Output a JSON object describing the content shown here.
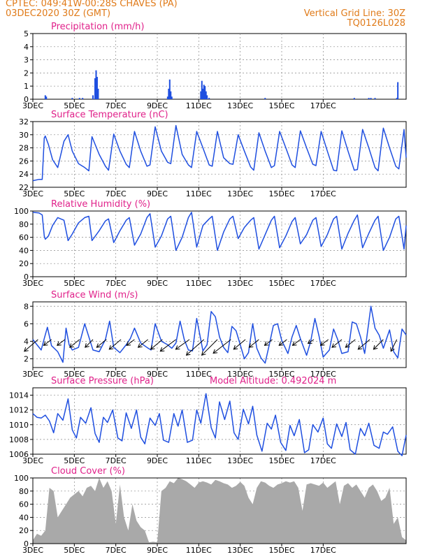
{
  "header": {
    "source_line": "CPTEC:   049:41W-00:28S   CHAVES (PA)",
    "date_line": "03DEC2020 30Z (GMT)",
    "grid_note": "Vertical Grid Line: 30Z",
    "run_code": "TQ0126L028"
  },
  "colors": {
    "header": "#e07b1a",
    "title": "#e0218a",
    "series": "#1f4fe0",
    "cloud": "#a9a9a9",
    "arrow": "#000000"
  },
  "x_tick_labels": [
    "3DEC",
    "5DEC",
    "7DEC",
    "9DEC",
    "11DEC",
    "13DEC",
    "15DEC",
    "17DEC"
  ],
  "chart_data": [
    {
      "type": "bar",
      "title": "Precipitation (mm/h)",
      "ylim": [
        0,
        5
      ],
      "yticks": [
        "0",
        "1",
        "2",
        "3",
        "4",
        "5"
      ],
      "x_unit": "days since 3DEC",
      "x": [
        0.6,
        0.65,
        1.9,
        2.25,
        2.4,
        2.9,
        3.0,
        3.05,
        3.1,
        3.15,
        6.5,
        6.55,
        6.6,
        6.65,
        6.7,
        8.1,
        8.15,
        8.2,
        8.25,
        8.3,
        8.35,
        8.4,
        8.5,
        11.2,
        15.5,
        16.2,
        16.3,
        16.5,
        17.55,
        17.6
      ],
      "values": [
        0.3,
        0.2,
        0.1,
        0.1,
        0.1,
        0.3,
        1.6,
        2.2,
        1.7,
        0.8,
        0.2,
        0.8,
        1.5,
        0.6,
        0.2,
        0.6,
        1.4,
        0.8,
        1.1,
        1.0,
        0.6,
        0.3,
        0.1,
        0.1,
        0.1,
        0.1,
        0.1,
        0.1,
        0.1,
        1.3
      ]
    },
    {
      "type": "line",
      "title": "Surface Temperature (nC)",
      "ylim": [
        22,
        32
      ],
      "yticks": [
        "22",
        "24",
        "26",
        "28",
        "30",
        "32"
      ],
      "x_unit": "days since 3DEC",
      "series": [
        {
          "x": [
            0,
            0.3,
            0.45,
            0.55,
            0.6,
            0.75,
            0.95,
            1.2,
            1.5,
            1.7,
            1.9,
            2.2,
            2.5,
            2.7,
            2.85,
            3.2,
            3.5,
            3.65,
            3.9,
            4.2,
            4.5,
            4.65,
            4.9,
            5.2,
            5.5,
            5.65,
            5.9,
            6.2,
            6.5,
            6.65,
            6.9,
            7.2,
            7.5,
            7.65,
            7.9,
            8.2,
            8.5,
            8.65,
            8.9,
            9.2,
            9.5,
            9.65,
            9.9,
            10.2,
            10.5,
            10.65,
            10.9,
            11.2,
            11.5,
            11.65,
            11.9,
            12.2,
            12.5,
            12.65,
            12.9,
            13.2,
            13.5,
            13.65,
            13.9,
            14.2,
            14.5,
            14.65,
            14.9,
            15.2,
            15.5,
            15.65,
            15.9,
            16.2,
            16.5,
            16.65,
            16.9,
            17.2,
            17.5,
            17.65,
            17.9,
            18.0
          ],
          "y": [
            23.0,
            23.2,
            23.2,
            29.5,
            29.8,
            28.5,
            26.2,
            25.0,
            29.0,
            30.0,
            27.5,
            25.6,
            25.0,
            24.5,
            29.7,
            27.0,
            25.2,
            24.6,
            30.1,
            27.5,
            25.5,
            25.0,
            30.5,
            27.5,
            25.2,
            25.4,
            31.2,
            27.5,
            25.8,
            25.6,
            31.4,
            27.0,
            25.4,
            25.0,
            30.5,
            28.0,
            25.4,
            25.2,
            30.5,
            26.5,
            25.6,
            25.5,
            30.0,
            27.5,
            25.1,
            24.6,
            30.3,
            27.5,
            25.0,
            25.3,
            30.5,
            28.0,
            25.4,
            25.0,
            30.6,
            28.0,
            25.5,
            25.3,
            30.5,
            27.5,
            24.6,
            24.5,
            30.6,
            27.5,
            24.6,
            24.7,
            30.8,
            28.0,
            25.0,
            24.5,
            31.0,
            28.0,
            25.2,
            24.8,
            30.8,
            26.5
          ]
        }
      ]
    },
    {
      "type": "line",
      "title": "Relative Humidity (%)",
      "ylim": [
        0,
        100
      ],
      "yticks": [
        "0",
        "20",
        "40",
        "60",
        "80",
        "100"
      ],
      "x_unit": "days since 3DEC",
      "series": [
        {
          "x": [
            0,
            0.3,
            0.45,
            0.55,
            0.6,
            0.75,
            0.95,
            1.2,
            1.5,
            1.7,
            1.9,
            2.2,
            2.5,
            2.7,
            2.85,
            3.2,
            3.5,
            3.65,
            3.9,
            4.2,
            4.5,
            4.65,
            4.9,
            5.2,
            5.5,
            5.65,
            5.9,
            6.2,
            6.5,
            6.65,
            6.9,
            7.2,
            7.5,
            7.65,
            7.9,
            8.2,
            8.5,
            8.65,
            8.9,
            9.2,
            9.5,
            9.65,
            9.9,
            10.2,
            10.5,
            10.65,
            10.9,
            11.2,
            11.5,
            11.65,
            11.9,
            12.2,
            12.5,
            12.65,
            12.9,
            13.2,
            13.5,
            13.65,
            13.9,
            14.2,
            14.5,
            14.65,
            14.9,
            15.2,
            15.5,
            15.65,
            15.9,
            16.2,
            16.5,
            16.65,
            16.9,
            17.2,
            17.5,
            17.65,
            17.9,
            18.0
          ],
          "y": [
            98,
            97,
            94,
            62,
            57,
            62,
            78,
            90,
            86,
            55,
            65,
            82,
            90,
            92,
            55,
            70,
            85,
            88,
            52,
            70,
            86,
            90,
            48,
            65,
            90,
            96,
            45,
            62,
            88,
            92,
            40,
            60,
            90,
            98,
            45,
            78,
            88,
            92,
            40,
            68,
            88,
            92,
            58,
            75,
            86,
            90,
            42,
            64,
            86,
            92,
            44,
            62,
            84,
            90,
            50,
            64,
            86,
            90,
            46,
            64,
            88,
            92,
            42,
            66,
            86,
            94,
            44,
            66,
            86,
            92,
            40,
            60,
            88,
            92,
            42,
            78
          ]
        }
      ]
    },
    {
      "type": "line",
      "title": "Surface Wind (m/s)",
      "ylim": [
        1,
        8.5
      ],
      "yticks": [
        "2",
        "4",
        "6",
        "8"
      ],
      "x_unit": "days since 3DEC",
      "series": [
        {
          "x": [
            0,
            0.2,
            0.4,
            0.55,
            0.7,
            0.9,
            1.2,
            1.45,
            1.6,
            1.75,
            1.9,
            2.2,
            2.5,
            2.7,
            2.9,
            3.2,
            3.5,
            3.7,
            3.9,
            4.2,
            4.5,
            4.7,
            4.9,
            5.2,
            5.5,
            5.7,
            5.9,
            6.2,
            6.5,
            6.7,
            6.9,
            7.1,
            7.3,
            7.5,
            7.7,
            7.9,
            8.2,
            8.4,
            8.6,
            8.8,
            9.0,
            9.2,
            9.4,
            9.6,
            9.8,
            10.0,
            10.2,
            10.4,
            10.6,
            10.8,
            11.0,
            11.2,
            11.4,
            11.6,
            11.8,
            12.0,
            12.3,
            12.5,
            12.7,
            12.9,
            13.2,
            13.4,
            13.6,
            13.8,
            14.0,
            14.3,
            14.5,
            14.7,
            14.9,
            15.2,
            15.4,
            15.6,
            15.8,
            16.0,
            16.3,
            16.5,
            16.7,
            16.9,
            17.2,
            17.4,
            17.6,
            17.8,
            18.0
          ],
          "y": [
            4.2,
            3.6,
            3.0,
            4.3,
            5.6,
            3.5,
            2.8,
            1.6,
            5.5,
            3.6,
            3.0,
            3.3,
            6.0,
            4.5,
            3.0,
            2.8,
            4.2,
            6.3,
            3.3,
            2.7,
            3.6,
            4.3,
            5.5,
            3.8,
            3.3,
            3.0,
            6.0,
            4.0,
            3.6,
            3.2,
            3.8,
            6.3,
            4.2,
            3.0,
            2.9,
            6.6,
            2.9,
            3.6,
            7.4,
            6.8,
            4.5,
            3.3,
            2.7,
            5.7,
            5.2,
            3.6,
            2.0,
            2.7,
            6.0,
            3.2,
            2.1,
            1.5,
            3.6,
            5.8,
            6.0,
            4.1,
            2.6,
            4.5,
            5.8,
            4.3,
            2.4,
            4.0,
            6.6,
            4.6,
            2.2,
            3.0,
            5.4,
            4.2,
            2.6,
            2.8,
            6.2,
            6.0,
            4.5,
            2.6,
            8.0,
            5.5,
            4.7,
            3.2,
            5.3,
            2.8,
            2.1,
            5.4,
            4.7
          ]
        }
      ],
      "vectors": {
        "x": [
          0.25,
          0.9,
          1.55,
          2.25,
          2.9,
          3.55,
          4.25,
          4.9,
          5.55,
          6.25,
          6.9,
          7.55,
          8.25,
          8.9,
          9.55,
          10.25,
          10.9,
          11.55,
          12.25,
          12.9,
          13.55,
          14.25,
          14.9,
          15.55,
          16.25,
          16.9,
          17.55
        ],
        "dx": [
          -0.7,
          -0.4,
          -0.4,
          -0.5,
          -0.4,
          -0.5,
          -0.6,
          -0.4,
          -0.5,
          -0.6,
          -0.8,
          -0.7,
          -0.9,
          -0.8,
          -0.9,
          -0.6,
          -0.5,
          -0.4,
          -0.4,
          -0.4,
          -0.3,
          -0.4,
          -0.5,
          -0.5,
          -0.6,
          -0.5,
          -0.3
        ],
        "dy": [
          -0.6,
          -0.3,
          -0.3,
          -0.4,
          -0.4,
          -0.4,
          -0.5,
          -0.3,
          -0.4,
          -0.5,
          -0.6,
          -0.5,
          -0.8,
          -0.8,
          -0.7,
          -0.5,
          -0.4,
          -0.3,
          -0.3,
          -0.3,
          -0.2,
          -0.3,
          -0.4,
          -0.4,
          -0.5,
          -0.5,
          -0.6
        ]
      }
    },
    {
      "type": "line",
      "title": "Surface Pressure (hPa)",
      "annotation": "Model Altitude: 0.492024 m",
      "ylim": [
        1006,
        1015
      ],
      "yticks": [
        "1006",
        "1008",
        "1010",
        "1012",
        "1014"
      ],
      "x_unit": "days since 3DEC",
      "series": [
        {
          "x": [
            0,
            0.2,
            0.4,
            0.6,
            0.8,
            1.0,
            1.2,
            1.45,
            1.7,
            1.9,
            2.1,
            2.3,
            2.55,
            2.8,
            3.0,
            3.2,
            3.4,
            3.6,
            3.85,
            4.1,
            4.3,
            4.5,
            4.75,
            5.0,
            5.2,
            5.4,
            5.65,
            5.9,
            6.1,
            6.3,
            6.55,
            6.8,
            7.0,
            7.2,
            7.45,
            7.7,
            7.9,
            8.1,
            8.35,
            8.6,
            8.8,
            9.0,
            9.25,
            9.5,
            9.7,
            9.9,
            10.15,
            10.4,
            10.6,
            10.8,
            11.05,
            11.3,
            11.5,
            11.7,
            11.95,
            12.2,
            12.4,
            12.6,
            12.85,
            13.1,
            13.3,
            13.5,
            13.75,
            14.0,
            14.2,
            14.4,
            14.65,
            14.9,
            15.1,
            15.3,
            15.55,
            15.8,
            16.0,
            16.2,
            16.45,
            16.7,
            16.9,
            17.1,
            17.35,
            17.6,
            17.8,
            18.0
          ],
          "y": [
            1011.5,
            1011.0,
            1010.9,
            1011.3,
            1010.5,
            1008.9,
            1011.5,
            1010.6,
            1013.5,
            1009.3,
            1008.2,
            1011.0,
            1010.2,
            1012.3,
            1008.8,
            1007.6,
            1011.0,
            1010.3,
            1012.0,
            1008.2,
            1007.8,
            1011.6,
            1009.5,
            1012.0,
            1008.3,
            1007.4,
            1010.9,
            1009.9,
            1011.5,
            1007.9,
            1007.6,
            1011.5,
            1009.8,
            1012.0,
            1007.6,
            1007.9,
            1012.0,
            1010.2,
            1014.2,
            1009.6,
            1008.2,
            1013.1,
            1010.7,
            1013.2,
            1008.9,
            1008.0,
            1012.1,
            1010.1,
            1012.5,
            1008.6,
            1006.4,
            1010.2,
            1009.4,
            1011.3,
            1007.6,
            1006.5,
            1009.9,
            1008.5,
            1010.7,
            1006.2,
            1006.6,
            1010.0,
            1009.0,
            1010.9,
            1007.4,
            1006.8,
            1010.1,
            1008.4,
            1010.3,
            1006.6,
            1006.0,
            1009.5,
            1008.5,
            1010.2,
            1007.2,
            1006.8,
            1009.0,
            1008.7,
            1009.7,
            1006.4,
            1005.8,
            1008.6
          ]
        }
      ]
    },
    {
      "type": "area",
      "title": "Cloud Cover (%)",
      "ylim": [
        0,
        100
      ],
      "yticks": [
        "0",
        "20",
        "40",
        "60",
        "80",
        "100"
      ],
      "x_unit": "days since 3DEC",
      "series": [
        {
          "x": [
            0,
            0.2,
            0.4,
            0.6,
            0.8,
            1.0,
            1.2,
            1.4,
            1.6,
            1.8,
            2.0,
            2.2,
            2.4,
            2.6,
            2.8,
            3.0,
            3.2,
            3.4,
            3.6,
            3.8,
            4.0,
            4.2,
            4.4,
            4.6,
            4.8,
            5.0,
            5.2,
            5.4,
            5.6,
            5.8,
            6.0,
            6.2,
            6.4,
            6.6,
            6.8,
            7.0,
            7.2,
            7.4,
            7.6,
            7.8,
            8.0,
            8.2,
            8.4,
            8.6,
            8.8,
            9.0,
            9.2,
            9.4,
            9.6,
            9.8,
            10.0,
            10.2,
            10.4,
            10.6,
            10.8,
            11.0,
            11.2,
            11.4,
            11.6,
            11.8,
            12.0,
            12.2,
            12.4,
            12.6,
            12.8,
            13.0,
            13.2,
            13.4,
            13.6,
            13.8,
            14.0,
            14.2,
            14.4,
            14.6,
            14.8,
            15.0,
            15.2,
            15.4,
            15.6,
            15.8,
            16.0,
            16.2,
            16.4,
            16.6,
            16.8,
            17.0,
            17.2,
            17.4,
            17.6,
            17.8,
            18.0
          ],
          "y": [
            5,
            15,
            12,
            20,
            85,
            80,
            40,
            50,
            60,
            70,
            75,
            80,
            72,
            85,
            88,
            80,
            100,
            85,
            95,
            80,
            30,
            90,
            40,
            20,
            60,
            35,
            25,
            20,
            2,
            3,
            2,
            80,
            85,
            95,
            92,
            100,
            98,
            95,
            90,
            85,
            93,
            95,
            93,
            90,
            97,
            95,
            92,
            90,
            85,
            88,
            94,
            88,
            70,
            60,
            85,
            95,
            93,
            88,
            85,
            90,
            92,
            95,
            93,
            95,
            85,
            50,
            90,
            92,
            90,
            88,
            93,
            85,
            90,
            95,
            60,
            88,
            92,
            85,
            90,
            80,
            70,
            85,
            90,
            80,
            65,
            70,
            85,
            30,
            40,
            10,
            5
          ]
        }
      ]
    }
  ]
}
